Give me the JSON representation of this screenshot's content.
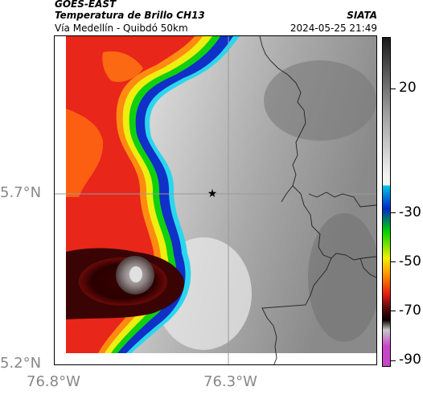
{
  "header": {
    "satellite": "GOES-EAST",
    "product": "Temperatura de Brillo CH13",
    "route": "Vía Medellín - Quibdó 50km",
    "institution": "SIATA",
    "datetime": "2024-05-25 21:49"
  },
  "axes": {
    "lat_labels": [
      "5.7°N",
      "5.2°N"
    ],
    "lon_labels": [
      "76.8°W",
      "76.3°W"
    ]
  },
  "colorbar": {
    "labels": [
      "20",
      "-30",
      "-50",
      "-70",
      "-90"
    ],
    "colors": {
      "warm_top": "#1a1a1a",
      "warm_mid": "#9a9a9a",
      "warm_low": "#f2f2f2",
      "cyan": "#00c8e6",
      "blue": "#0028c8",
      "green": "#00d200",
      "yellow": "#f0f000",
      "orange": "#ff9600",
      "red": "#e61e14",
      "dark_red": "#640a0a",
      "black": "#0a0000",
      "grey_light": "#c8c8c8",
      "magenta": "#c846c8"
    }
  },
  "map": {
    "marker": "star-icon",
    "marker_color": "#000000",
    "grid_color": "#888888",
    "border_color": "#222222"
  }
}
